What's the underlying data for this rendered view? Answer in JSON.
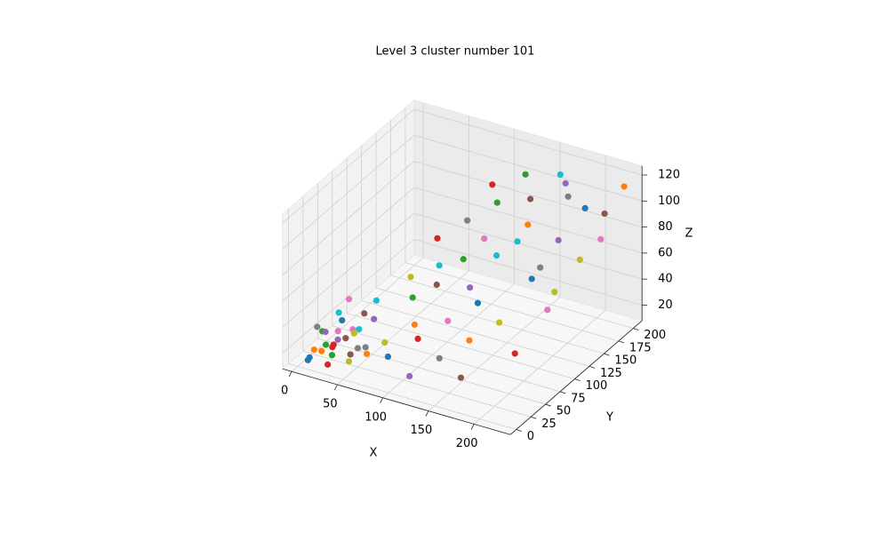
{
  "chart_data": {
    "type": "scatter3d",
    "title": "Level 3 cluster number 101",
    "xlabel": "X",
    "ylabel": "Y",
    "zlabel": "Z",
    "xlim": [
      -10,
      240
    ],
    "ylim": [
      -10,
      215
    ],
    "zlim": [
      8,
      127
    ],
    "xticks": [
      0,
      50,
      100,
      150,
      200
    ],
    "yticks": [
      0,
      25,
      50,
      75,
      100,
      125,
      150,
      175,
      200
    ],
    "zticks": [
      20,
      40,
      60,
      80,
      100,
      120
    ],
    "grid": true,
    "color_cycle": [
      "#1f77b4",
      "#ff7f0e",
      "#2ca02c",
      "#d62728",
      "#9467bd",
      "#8c564b",
      "#e377c2",
      "#7f7f7f",
      "#bcbd22",
      "#17becf"
    ],
    "x": [
      10,
      20,
      15,
      30,
      25,
      40,
      35,
      12,
      50,
      45,
      20,
      60,
      8,
      28,
      55,
      38,
      18,
      65,
      70,
      48,
      80,
      90,
      75,
      100,
      110,
      95,
      120,
      130,
      60,
      85,
      140,
      150,
      105,
      70,
      125,
      160,
      115,
      90,
      170,
      135,
      180,
      150,
      110,
      200,
      190,
      140,
      210,
      175,
      220,
      160,
      200,
      230,
      125,
      95,
      185,
      215,
      230,
      170,
      205,
      145,
      5,
      15,
      25,
      35,
      5,
      42,
      22,
      52,
      30,
      10
    ],
    "y": [
      5,
      10,
      25,
      15,
      30,
      20,
      40,
      15,
      10,
      35,
      45,
      25,
      30,
      8,
      45,
      55,
      60,
      15,
      40,
      60,
      30,
      60,
      80,
      50,
      20,
      90,
      70,
      40,
      100,
      110,
      90,
      60,
      120,
      130,
      100,
      30,
      140,
      150,
      80,
      130,
      120,
      160,
      170,
      60,
      150,
      180,
      100,
      190,
      140,
      200,
      180,
      200,
      195,
      185,
      170,
      190,
      160,
      150,
      120,
      150,
      10,
      5,
      20,
      5,
      40,
      25,
      35,
      22,
      50,
      55
    ],
    "z": [
      15,
      20,
      18,
      25,
      22,
      30,
      28,
      35,
      18,
      32,
      30,
      20,
      25,
      12,
      38,
      35,
      40,
      30,
      25,
      45,
      20,
      35,
      45,
      30,
      15,
      55,
      40,
      25,
      50,
      60,
      50,
      35,
      65,
      70,
      55,
      20,
      75,
      80,
      45,
      70,
      65,
      85,
      90,
      35,
      85,
      95,
      55,
      100,
      80,
      110,
      100,
      115,
      105,
      95,
      120,
      95,
      90,
      60,
      60,
      75,
      10,
      22,
      14,
      28,
      20,
      16,
      26,
      24,
      20,
      30
    ]
  }
}
